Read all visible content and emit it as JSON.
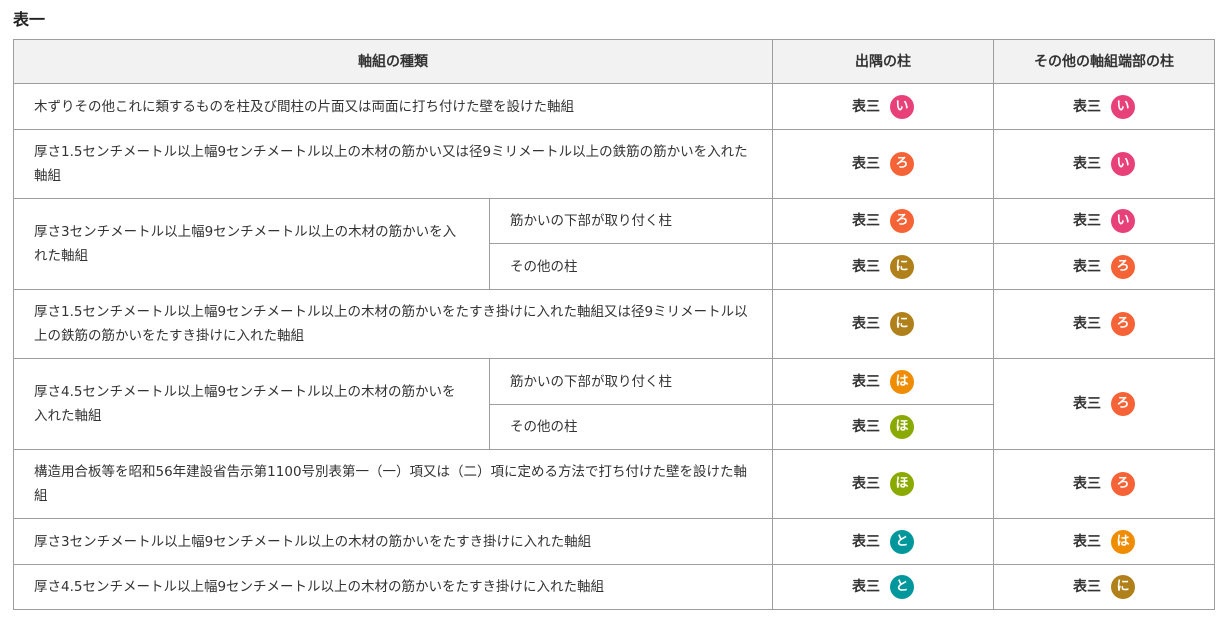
{
  "title": "表一",
  "headers": [
    "軸組の種類",
    "出隅の柱",
    "その他の軸組端部の柱"
  ],
  "label": "表三",
  "colors": {
    "い": "#e8417a",
    "ろ": "#f56336",
    "は": "#ef8c00",
    "に": "#b0801a",
    "ほ": "#8aaa00",
    "と": "#00979c"
  },
  "rows": [
    {
      "type": "木ずりその他これに類するものを柱及び間柱の片面又は両面に打ち付けた壁を設けた軸組",
      "sub": null,
      "corner": "い",
      "other": "い"
    },
    {
      "type": "厚さ1.5センチメートル以上幅9センチメートル以上の木材の筋かい又は径9ミリメートル以上の鉄筋の筋かいを入れた軸組",
      "sub": null,
      "corner": "ろ",
      "other": "い"
    },
    {
      "type": "厚さ3センチメートル以上幅9センチメートル以上の木材の筋かいを入れた軸組",
      "sub": "筋かいの下部が取り付く柱",
      "corner": "ろ",
      "other": "い"
    },
    {
      "type": null,
      "sub": "その他の柱",
      "corner": "に",
      "other": "ろ"
    },
    {
      "type": "厚さ1.5センチメートル以上幅9センチメートル以上の木材の筋かいをたすき掛けに入れた軸組又は径9ミリメートル以上の鉄筋の筋かいをたすき掛けに入れた軸組",
      "sub": null,
      "corner": "に",
      "other": "ろ"
    },
    {
      "type": "厚さ4.5センチメートル以上幅9センチメートル以上の木材の筋かいを入れた軸組",
      "sub": "筋かいの下部が取り付く柱",
      "corner": "は",
      "other": "ろ"
    },
    {
      "type": null,
      "sub": "その他の柱",
      "corner": "ほ",
      "other": null
    },
    {
      "type": "構造用合板等を昭和56年建設省告示第1100号別表第一（一）項又は（二）項に定める方法で打ち付けた壁を設けた軸組",
      "sub": null,
      "corner": "ほ",
      "other": "ろ"
    },
    {
      "type": "厚さ3センチメートル以上幅9センチメートル以上の木材の筋かいをたすき掛けに入れた軸組",
      "sub": null,
      "corner": "と",
      "other": "は"
    },
    {
      "type": "厚さ4.5センチメートル以上幅9センチメートル以上の木材の筋かいをたすき掛けに入れた軸組",
      "sub": null,
      "corner": "と",
      "other": "に"
    }
  ]
}
